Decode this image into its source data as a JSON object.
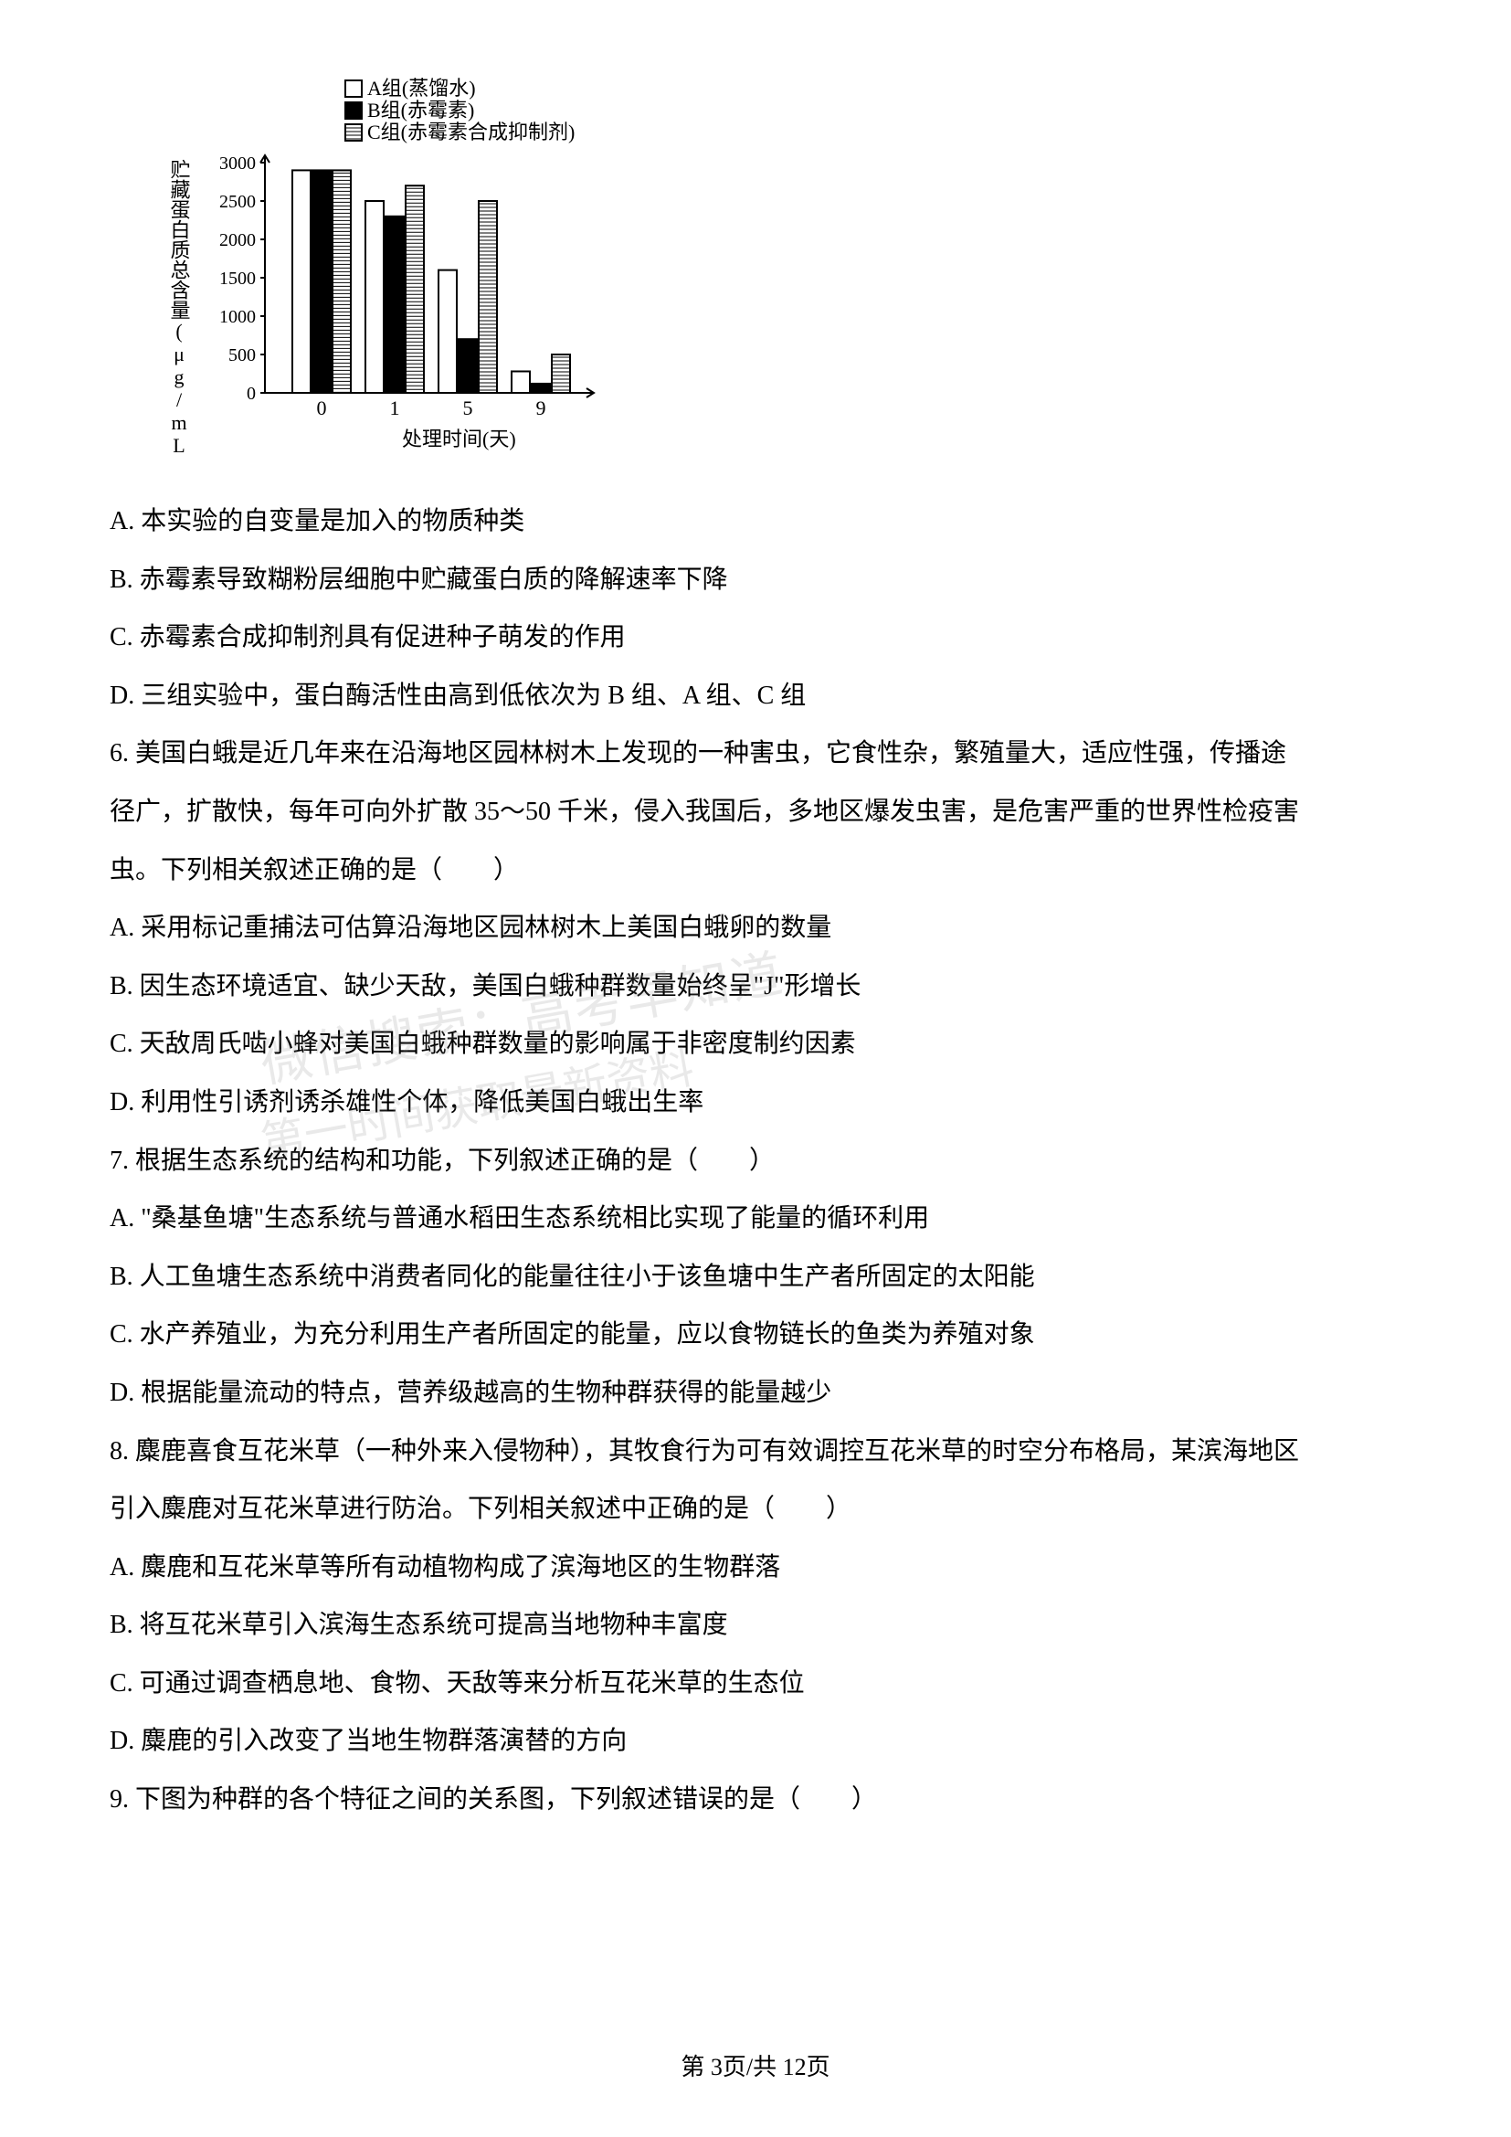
{
  "chart": {
    "type": "bar",
    "legend": {
      "items": [
        {
          "label": "A组(蒸馏水)",
          "fill": "#ffffff",
          "stroke": "#000000"
        },
        {
          "label": "B组(赤霉素)",
          "fill": "#000000",
          "stroke": "#000000"
        },
        {
          "label": "C组(赤霉素合成抑制剂)",
          "fill": "#888888",
          "stroke": "#000000",
          "pattern": "stripe"
        }
      ],
      "fontsize": 22
    },
    "ylabel": "贮藏蛋白质总含量(μg/mL)",
    "ylabel_fontsize": 22,
    "ylabel_vertical": true,
    "xlabel": "处理时间(天)",
    "xlabel_fontsize": 22,
    "ylim": [
      0,
      3000
    ],
    "ytick_step": 500,
    "yticks": [
      0,
      500,
      1000,
      1500,
      2000,
      2500,
      3000
    ],
    "categories": [
      "0",
      "1",
      "5",
      "9"
    ],
    "series": {
      "A": [
        2900,
        2500,
        1600,
        280
      ],
      "B": [
        2900,
        2300,
        700,
        120
      ],
      "C": [
        2900,
        2700,
        2500,
        500
      ]
    },
    "bar_width": 0.23,
    "axis_color": "#000000",
    "background_color": "#ffffff"
  },
  "q5_options": {
    "A": "A. 本实验的自变量是加入的物质种类",
    "B": "B. 赤霉素导致糊粉层细胞中贮藏蛋白质的降解速率下降",
    "C": "C. 赤霉素合成抑制剂具有促进种子萌发的作用",
    "D": "D. 三组实验中，蛋白酶活性由高到低依次为 B 组、A 组、C 组"
  },
  "q6": {
    "stem1": "6. 美国白蛾是近几年来在沿海地区园林树木上发现的一种害虫，它食性杂，繁殖量大，适应性强，传播途",
    "stem2": "径广，扩散快，每年可向外扩散 35～50 千米，侵入我国后，多地区爆发虫害，是危害严重的世界性检疫害",
    "stem3": "虫。下列相关叙述正确的是（　　）",
    "A": "A. 采用标记重捕法可估算沿海地区园林树木上美国白蛾卵的数量",
    "B": "B. 因生态环境适宜、缺少天敌，美国白蛾种群数量始终呈\"J\"形增长",
    "C": "C. 天敌周氏啮小蜂对美国白蛾种群数量的影响属于非密度制约因素",
    "D": "D. 利用性引诱剂诱杀雄性个体，降低美国白蛾出生率"
  },
  "q7": {
    "stem": "7. 根据生态系统的结构和功能，下列叙述正确的是（　　）",
    "A": "A. \"桑基鱼塘\"生态系统与普通水稻田生态系统相比实现了能量的循环利用",
    "B": "B. 人工鱼塘生态系统中消费者同化的能量往往小于该鱼塘中生产者所固定的太阳能",
    "C": "C. 水产养殖业，为充分利用生产者所固定的能量，应以食物链长的鱼类为养殖对象",
    "D": "D. 根据能量流动的特点，营养级越高的生物种群获得的能量越少"
  },
  "q8": {
    "stem1": "8. 麋鹿喜食互花米草（一种外来入侵物种），其牧食行为可有效调控互花米草的时空分布格局，某滨海地区",
    "stem2": "引入麋鹿对互花米草进行防治。下列相关叙述中正确的是（　　）",
    "A": "A. 麋鹿和互花米草等所有动植物构成了滨海地区的生物群落",
    "B": "B. 将互花米草引入滨海生态系统可提高当地物种丰富度",
    "C": "C. 可通过调查栖息地、食物、天敌等来分析互花米草的生态位",
    "D": "D. 麋鹿的引入改变了当地生物群落演替的方向"
  },
  "q9": {
    "stem": "9. 下图为种群的各个特征之间的关系图，下列叙述错误的是（　　）"
  },
  "footer": "第 3页/共 12页",
  "watermark": {
    "line1": "微信搜索：高考早知道",
    "line2": "第一时间获取最新资料"
  }
}
